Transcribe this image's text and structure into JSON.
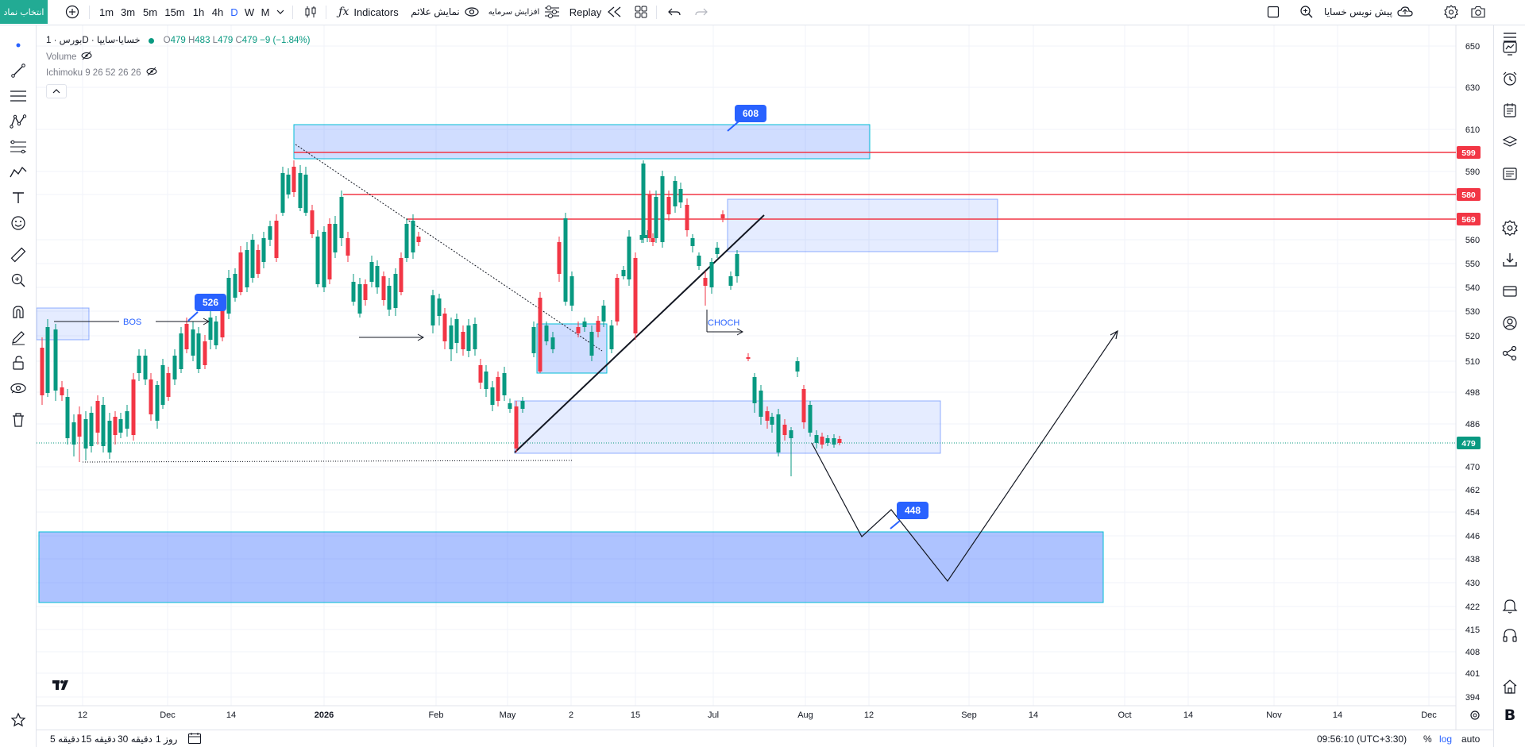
{
  "toolbar": {
    "symbol_button": "انتخاب نماد",
    "timeframes": [
      "1m",
      "3m",
      "5m",
      "15m",
      "1h",
      "4h",
      "D",
      "W",
      "M"
    ],
    "active_timeframe": "D",
    "indicators_label": "Indicators",
    "show_signals_label": "نمایش علائم",
    "capital_increase_label": "افزایش سرمایه",
    "replay_label": "Replay",
    "pre_writing_label": "پیش نویس خسایا"
  },
  "legend": {
    "symbol_title": "بورس · 1D · خسایا-سایپا",
    "ohlc": {
      "open_label": "O",
      "open": "479",
      "high_label": "H",
      "high": "483",
      "low_label": "L",
      "low": "479",
      "close_label": "C",
      "close": "479",
      "change": "−9 (−1.84%)"
    },
    "volume_label": "Volume",
    "ichimoku_label": "Ichimoku 9 26 52 26 26"
  },
  "chart_data": {
    "type": "candlestick",
    "price_axis": [
      "650",
      "630",
      "610",
      "590",
      "580",
      "560",
      "550",
      "540",
      "530",
      "520",
      "510",
      "498",
      "486",
      "479",
      "470",
      "462",
      "454",
      "446",
      "438",
      "430",
      "422",
      "415",
      "408",
      "401",
      "394"
    ],
    "time_axis": [
      "12",
      "Dec",
      "14",
      "2026",
      "Feb",
      "May",
      "2",
      "15",
      "Jul",
      "Aug",
      "12",
      "Sep",
      "14",
      "Oct",
      "14",
      "Nov",
      "14",
      "Dec"
    ],
    "price_badges": [
      {
        "value": "599",
        "color": "#f23645"
      },
      {
        "value": "580",
        "color": "#f23645"
      },
      {
        "value": "569",
        "color": "#f23645"
      },
      {
        "value": "479",
        "color": "#089981"
      }
    ],
    "callouts": [
      "608",
      "526",
      "448"
    ],
    "text_annotations": [
      "BOS",
      "CHOCH"
    ],
    "colors": {
      "up": "#089981",
      "down": "#f23645",
      "zone": "#2962ff",
      "resistance": "#f23645"
    },
    "log_scale": false
  },
  "bottombar": {
    "ranges": [
      "روز 1",
      "دقیقه 30",
      "دقیقه 15",
      "دقیقه 5"
    ],
    "time": "09:56:10 (UTC+3:30)",
    "percent": "%",
    "log": "log",
    "auto": "auto"
  }
}
